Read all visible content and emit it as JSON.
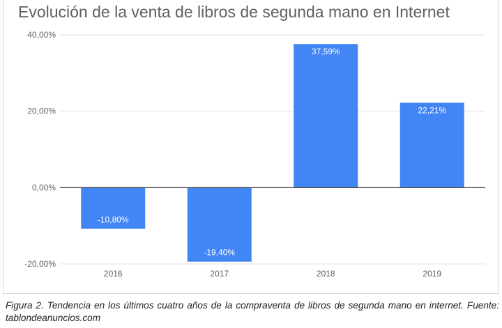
{
  "chart_data": {
    "type": "bar",
    "title": "Evolución de la venta de libros de segunda mano en Internet",
    "categories": [
      "2016",
      "2017",
      "2018",
      "2019"
    ],
    "values": [
      -10.8,
      -19.4,
      37.59,
      22.21
    ],
    "data_labels": [
      "-10,80%",
      "-19,40%",
      "37,59%",
      "22,21%"
    ],
    "y_ticks": [
      -20,
      0,
      20,
      40
    ],
    "y_tick_labels": [
      "-20,00%",
      "0,00%",
      "20,00%",
      "40,00%"
    ],
    "ylim": [
      -20,
      40
    ],
    "xlabel": "",
    "ylabel": "",
    "grid": true,
    "bar_color": "#4285f4"
  },
  "caption": "Figura 2. Tendencia en los últimos cuatro años de la compraventa de libros de segunda mano en internet. Fuente: tablondeanuncios.com"
}
